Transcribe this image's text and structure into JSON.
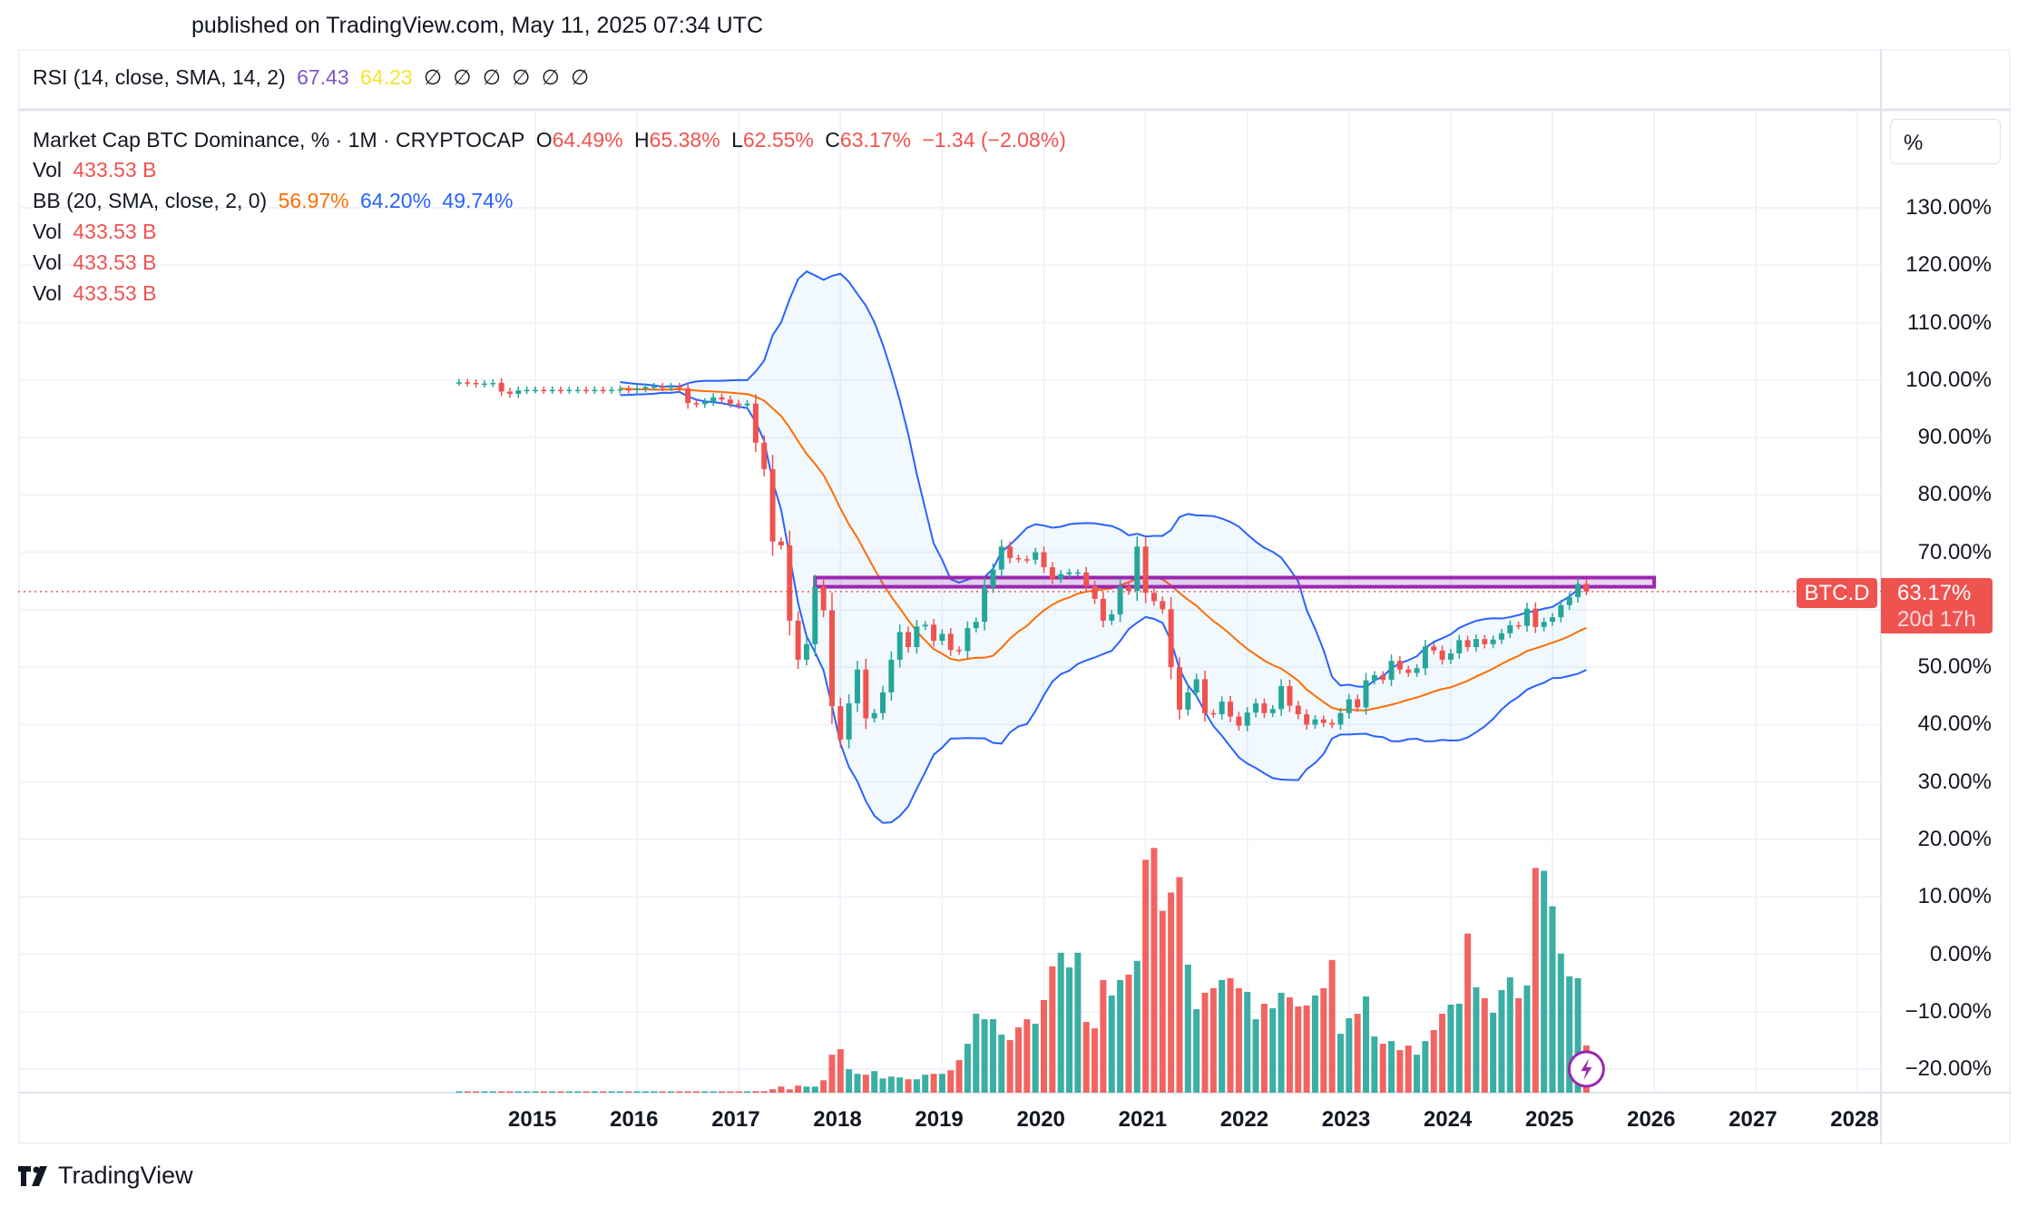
{
  "published": "published on TradingView.com, May 11, 2025 07:34 UTC",
  "rsi_legend": {
    "label": "RSI (14, close, SMA, 14, 2)",
    "value1": "67.43",
    "value2": "64.23",
    "empty": [
      "∅",
      "∅",
      "∅",
      "∅",
      "∅",
      "∅"
    ]
  },
  "main_legend": {
    "title": "Market Cap BTC Dominance, % · 1M · CRYPTOCAP",
    "o_label": "O",
    "o": "64.49%",
    "h_label": "H",
    "h": "65.38%",
    "l_label": "L",
    "l": "62.55%",
    "c_label": "C",
    "c": "63.17%",
    "change": "−1.34 (−2.08%)"
  },
  "vol_legends": [
    {
      "label": "Vol",
      "value": "433.53 B"
    },
    {
      "label": "Vol",
      "value": "433.53 B"
    },
    {
      "label": "Vol",
      "value": "433.53 B"
    },
    {
      "label": "Vol",
      "value": "433.53 B"
    }
  ],
  "bb_legend": {
    "label": "BB (20, SMA, close, 2, 0)",
    "basis": "56.97%",
    "upper": "64.20%",
    "lower": "49.74%"
  },
  "scale_mode": "%",
  "price_tag": {
    "symbol": "BTC.D",
    "value": "63.17%",
    "countdown": "20d 17h"
  },
  "brand": "TradingView",
  "colors": {
    "up": "#26a69a",
    "down": "#ef5350",
    "bb_basis": "#ff6d00",
    "bb_band": "#2962ff",
    "rect": "#9c27b0",
    "rsi": "#7e57c2",
    "rsi_ma": "#f5e42e"
  },
  "chart_data": {
    "type": "candlestick",
    "interval": "1M",
    "start_month": "2014-04",
    "close": [
      99.6,
      99.5,
      99.3,
      99.4,
      99.5,
      98.0,
      97.6,
      98.2,
      98.3,
      98.3,
      98.2,
      98.3,
      98.2,
      98.3,
      98.3,
      98.2,
      98.3,
      98.2,
      98.3,
      98.4,
      98.3,
      98.5,
      98.8,
      98.9,
      98.7,
      98.9,
      98.6,
      96.0,
      95.8,
      96.2,
      97.0,
      96.6,
      95.9,
      95.6,
      95.9,
      89.1,
      84.5,
      71.9,
      71.2,
      58.1,
      51.3,
      54.0,
      64.0,
      59.9,
      43.2,
      37.4,
      43.7,
      49.6,
      41.1,
      42.0,
      45.6,
      51.3,
      56.1,
      53.5,
      57.1,
      57.4,
      54.6,
      55.8,
      53.0,
      52.8,
      56.8,
      57.9,
      64.0,
      67.0,
      71.0,
      69.0,
      68.8,
      68.7,
      70.0,
      67.4,
      65.4,
      66.2,
      66.5,
      66.5,
      64.1,
      61.9,
      58.1,
      59.2,
      64.0,
      63.3,
      71.0,
      62.95,
      61.5,
      60.1,
      50.0,
      42.6,
      45.6,
      47.9,
      42.0,
      41.8,
      44.0,
      41.4,
      39.8,
      42.1,
      43.7,
      42.0,
      42.7,
      46.7,
      43.3,
      41.8,
      40.0,
      40.9,
      40.3,
      40.0,
      42.0,
      44.4,
      43.0,
      47.7,
      48.6,
      47.8,
      51.1,
      49.6,
      49.0,
      49.8,
      53.6,
      52.9,
      51.3,
      52.4,
      54.7,
      53.5,
      54.9,
      54.0,
      54.8,
      55.9,
      57.3,
      57.2,
      60.2,
      57.0,
      57.9,
      58.7,
      60.8,
      62.2,
      64.5,
      63.17
    ],
    "last_candle": {
      "open": 64.49,
      "high": 65.38,
      "low": 62.55,
      "close": 63.17
    },
    "volume_billions": [
      5,
      5,
      5,
      5,
      5,
      5,
      5,
      5,
      5,
      5,
      5,
      5,
      5,
      5,
      5,
      5,
      5,
      5,
      5,
      5,
      5,
      5,
      5,
      5,
      5,
      5,
      5,
      5,
      5,
      5,
      5,
      5,
      5,
      5,
      5,
      14,
      14,
      31,
      56,
      31,
      64,
      56,
      56,
      114,
      349,
      399,
      215,
      173,
      165,
      198,
      131,
      148,
      140,
      123,
      123,
      165,
      173,
      173,
      206,
      299,
      449,
      725,
      675,
      675,
      533,
      483,
      600,
      675,
      633,
      851,
      1161,
      1286,
      1152,
      1286,
      650,
      591,
      1035,
      893,
      1035,
      1085,
      1211,
      2140,
      2249,
      1671,
      1839,
      1981,
      1177,
      767,
      918,
      960,
      1035,
      1052,
      960,
      926,
      675,
      817,
      776,
      918,
      876,
      792,
      801,
      893,
      960,
      1219,
      541,
      684,
      725,
      884,
      516,
      449,
      474,
      391,
      432,
      349,
      474,
      575,
      725,
      809,
      817,
      1462,
      968,
      868,
      734,
      943,
      1060,
      868,
      985,
      2065,
      2039,
      1713,
      1278,
      1069,
      1052,
      433.53
    ],
    "bollinger": {
      "length": 20,
      "mult": 2
    },
    "horizontal_line": 63.17,
    "rectangle": {
      "from": "2017-10",
      "to": "2026-01",
      "low": 64.0,
      "high": 65.6
    },
    "y_ticks": [
      "130.00%",
      "120.00%",
      "110.00%",
      "100.00%",
      "90.00%",
      "80.00%",
      "70.00%",
      "60.00%",
      "50.00%",
      "40.00%",
      "30.00%",
      "20.00%",
      "10.00%",
      "0.00%",
      "−10.00%",
      "−20.00%"
    ],
    "y_tick_values": [
      130,
      120,
      110,
      100,
      90,
      80,
      70,
      60,
      50,
      40,
      30,
      20,
      10,
      0,
      -10,
      -20
    ],
    "x_ticks": [
      "2015",
      "2016",
      "2017",
      "2018",
      "2019",
      "2020",
      "2021",
      "2022",
      "2023",
      "2024",
      "2025",
      "2026",
      "2027",
      "2028"
    ],
    "grid": true
  }
}
